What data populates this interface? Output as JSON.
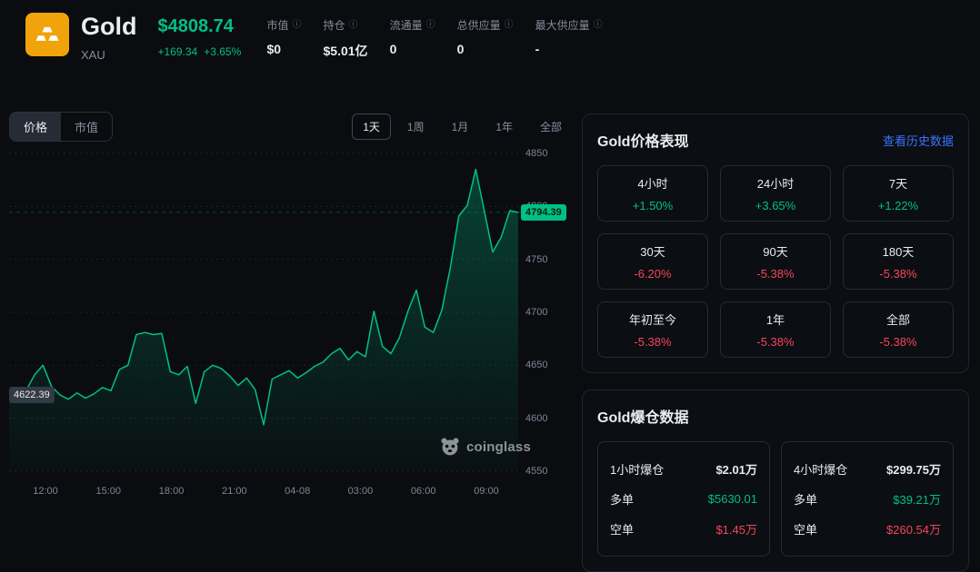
{
  "colors": {
    "up": "#00c087",
    "down": "#f6455d",
    "link": "#3b72ff"
  },
  "header": {
    "title": "Gold",
    "symbol": "XAU",
    "price": "$4808.74",
    "change_abs": "+169.34",
    "change_pct": "+3.65%",
    "stats": [
      {
        "label": "市值",
        "value": "$0"
      },
      {
        "label": "持仓",
        "value": "$5.01亿"
      },
      {
        "label": "流通量",
        "value": "0"
      },
      {
        "label": "总供应量",
        "value": "0"
      },
      {
        "label": "最大供应量",
        "value": "-"
      }
    ]
  },
  "chart": {
    "tabs": [
      {
        "label": "价格",
        "active": true
      },
      {
        "label": "市值",
        "active": false
      }
    ],
    "ranges": [
      {
        "label": "1天",
        "active": true
      },
      {
        "label": "1周",
        "active": false
      },
      {
        "label": "1月",
        "active": false
      },
      {
        "label": "1年",
        "active": false
      },
      {
        "label": "全部",
        "active": false
      }
    ],
    "last_badge": "4794.39",
    "min_badge": "4622.39",
    "watermark": "coinglass"
  },
  "chart_data": {
    "type": "area",
    "ylim": [
      4550,
      4850
    ],
    "yticks": [
      4850,
      4800,
      4750,
      4700,
      4650,
      4600,
      4550
    ],
    "xticks": [
      "12:00",
      "15:00",
      "18:00",
      "21:00",
      "04-08",
      "03:00",
      "06:00",
      "09:00"
    ],
    "last_price": 4794.39,
    "min_price": 4622.39,
    "prices": [
      4622,
      4619,
      4626,
      4641,
      4650,
      4630,
      4622,
      4618,
      4624,
      4619,
      4623,
      4629,
      4626,
      4646,
      4650,
      4679,
      4681,
      4679,
      4680,
      4644,
      4641,
      4649,
      4614,
      4644,
      4650,
      4647,
      4640,
      4631,
      4638,
      4627,
      4594,
      4637,
      4641,
      4645,
      4638,
      4643,
      4649,
      4653,
      4661,
      4666,
      4655,
      4663,
      4658,
      4701,
      4668,
      4661,
      4676,
      4701,
      4721,
      4686,
      4681,
      4702,
      4742,
      4791,
      4801,
      4835,
      4796,
      4757,
      4771,
      4796,
      4794.39
    ]
  },
  "performance": {
    "title": "Gold价格表现",
    "link_label": "查看历史数据",
    "cells": [
      {
        "label": "4小时",
        "value": "+1.50%"
      },
      {
        "label": "24小时",
        "value": "+3.65%"
      },
      {
        "label": "7天",
        "value": "+1.22%"
      },
      {
        "label": "30天",
        "value": "-6.20%"
      },
      {
        "label": "90天",
        "value": "-5.38%"
      },
      {
        "label": "180天",
        "value": "-5.38%"
      },
      {
        "label": "年初至今",
        "value": "-5.38%"
      },
      {
        "label": "1年",
        "value": "-5.38%"
      },
      {
        "label": "全部",
        "value": "-5.38%"
      }
    ]
  },
  "liquidation": {
    "title": "Gold爆仓数据",
    "boxes": [
      {
        "title": "1小时爆仓",
        "total": "$2.01万",
        "long_label": "多单",
        "long_value": "$5630.01",
        "short_label": "空单",
        "short_value": "$1.45万"
      },
      {
        "title": "4小时爆仓",
        "total": "$299.75万",
        "long_label": "多单",
        "long_value": "$39.21万",
        "short_label": "空单",
        "short_value": "$260.54万"
      }
    ]
  }
}
